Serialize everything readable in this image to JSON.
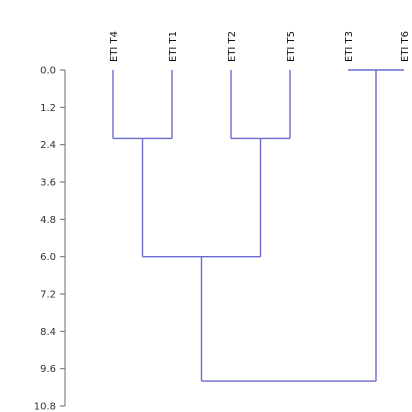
{
  "chart_data": {
    "type": "dendrogram",
    "title": "",
    "xlabel": "",
    "ylabel": "",
    "ylim": [
      0,
      10.8
    ],
    "y_ticks": [
      "0.0",
      "1.2",
      "2.4",
      "3.6",
      "4.8",
      "6.0",
      "7.2",
      "8.4",
      "9.6",
      "10.8"
    ],
    "leaves": [
      "ETI T4",
      "ETI T1",
      "ETI T2",
      "ETI T5",
      "ETI T3",
      "ETI T6"
    ],
    "merges": [
      {
        "left": "ETI T4",
        "right": "ETI T1",
        "height": 2.2
      },
      {
        "left": "ETI T2",
        "right": "ETI T5",
        "height": 2.2
      },
      {
        "left": "ETI T4+ETI T1",
        "right": "ETI T2+ETI T5",
        "height": 6.0
      },
      {
        "left": "ETI T3",
        "right": "ETI T6",
        "height": 0.0
      },
      {
        "left": "ETI T4+ETI T1+ETI T2+ETI T5",
        "right": "ETI T3+ETI T6",
        "height": 10.0
      }
    ],
    "line_color": "#6a6ad0",
    "grid": false
  }
}
